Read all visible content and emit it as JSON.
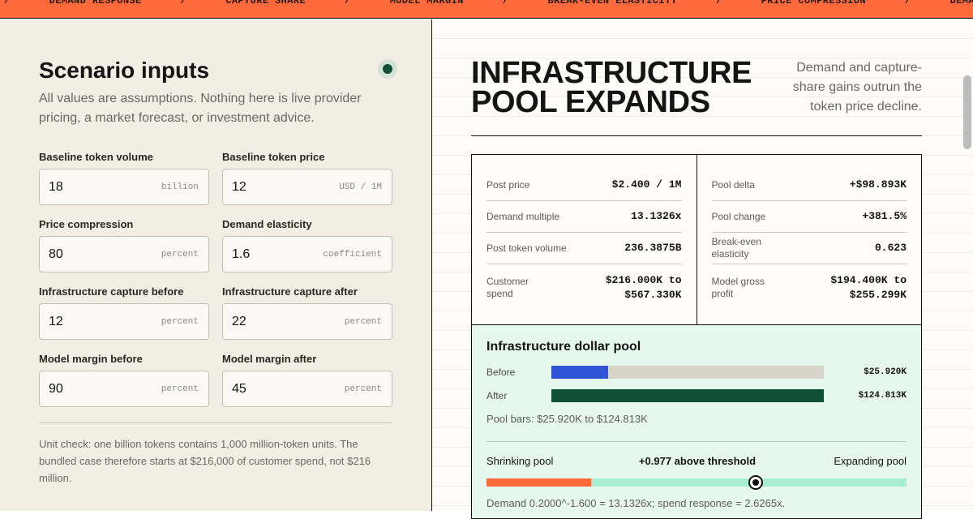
{
  "ticker": {
    "separator": "/",
    "items": [
      "DEMAND RESPONSE",
      "CAPTURE SHARE",
      "MODEL MARGIN",
      "BREAK-EVEN ELASTICITY",
      "PRICE COMPRESSION"
    ]
  },
  "inputs": {
    "title": "Scenario inputs",
    "subtitle": "All values are assumptions. Nothing here is live provider pricing, a market forecast, or investment advice.",
    "fields": [
      {
        "label": "Baseline token volume",
        "value": "18",
        "unit": "billion"
      },
      {
        "label": "Baseline token price",
        "value": "12",
        "unit": "USD / 1M"
      },
      {
        "label": "Price compression",
        "value": "80",
        "unit": "percent"
      },
      {
        "label": "Demand elasticity",
        "value": "1.6",
        "unit": "coefficient"
      },
      {
        "label": "Infrastructure capture before",
        "value": "12",
        "unit": "percent"
      },
      {
        "label": "Infrastructure capture after",
        "value": "22",
        "unit": "percent"
      },
      {
        "label": "Model margin before",
        "value": "90",
        "unit": "percent"
      },
      {
        "label": "Model margin after",
        "value": "45",
        "unit": "percent"
      }
    ],
    "note": "Unit check: one billion tokens contains 1,000 million-token units. The bundled case therefore starts at $216,000 of customer spend, not $216 million."
  },
  "result": {
    "title": "INFRASTRUCTURE POOL EXPANDS",
    "summary": "Demand and capture-share gains outrun the token price decline.",
    "metrics": [
      [
        {
          "label": "Post price",
          "value": "$2.400 / 1M"
        },
        {
          "label": "Demand multiple",
          "value": "13.1326x"
        },
        {
          "label": "Post token volume",
          "value": "236.3875B"
        },
        {
          "label": "Customer spend",
          "value": "$216.000K to $567.330K"
        }
      ],
      [
        {
          "label": "Pool delta",
          "value": "+$98.893K"
        },
        {
          "label": "Pool change",
          "value": "+381.5%"
        },
        {
          "label": "Break-even elasticity",
          "value": "0.623"
        },
        {
          "label": "Model gross profit",
          "value": "$194.400K to $255.299K"
        }
      ]
    ],
    "pool": {
      "title": "Infrastructure dollar pool",
      "rows": [
        {
          "label": "Before",
          "value": 25.92,
          "value_label": "$25.920K",
          "color": "#2f54d6"
        },
        {
          "label": "After",
          "value": 124.813,
          "value_label": "$124.813K",
          "color": "#0f5034"
        }
      ],
      "caption": "Pool bars: $25.920K to $124.813K"
    },
    "gauge": {
      "left_label": "Shrinking pool",
      "status": "+0.977 above threshold",
      "right_label": "Expanding pool",
      "threshold": 0.623,
      "value": 1.6,
      "scale": [
        0,
        2.5
      ]
    },
    "formula": "Demand 0.2000^-1.600 = 13.1326x; spend response = 2.6265x."
  }
}
